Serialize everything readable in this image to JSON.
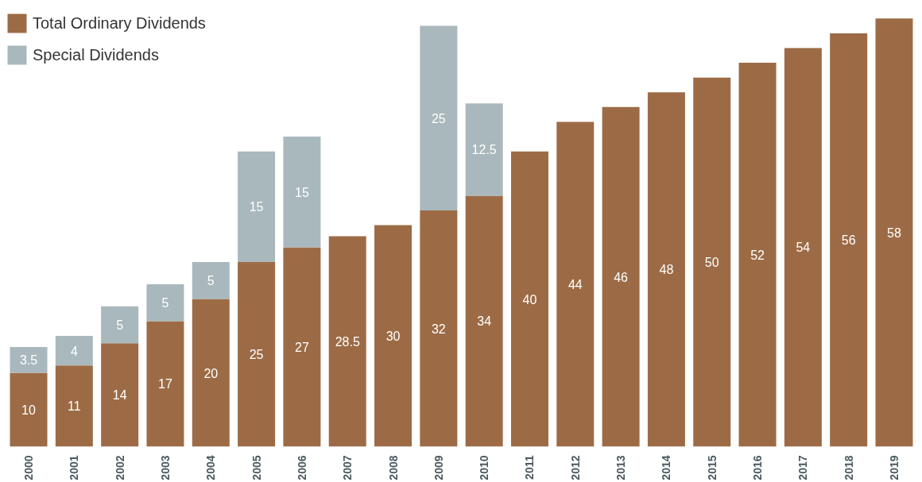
{
  "chart_data": {
    "type": "bar",
    "stacked": true,
    "data_labels": true,
    "legend": "top left",
    "grid": false,
    "categories": [
      "2000",
      "2001",
      "2002",
      "2003",
      "2004",
      "2005",
      "2006",
      "2007",
      "2008",
      "2009",
      "2010",
      "2011",
      "2012",
      "2013",
      "2014",
      "2015",
      "2016",
      "2017",
      "2018",
      "2019"
    ],
    "series": [
      {
        "name": "Total Ordinary Dividends",
        "color": "#9c6b45",
        "values": [
          10,
          11,
          14,
          17,
          20,
          25,
          27,
          28.5,
          30,
          32,
          34,
          40,
          44,
          46,
          48,
          50,
          52,
          54,
          56,
          58
        ]
      },
      {
        "name": "Special Dividends",
        "color": "#a9b8bc",
        "values": [
          3.5,
          4,
          5,
          5,
          5,
          15,
          15,
          null,
          null,
          25,
          12.5,
          null,
          null,
          null,
          null,
          null,
          null,
          null,
          null,
          null
        ]
      }
    ]
  }
}
